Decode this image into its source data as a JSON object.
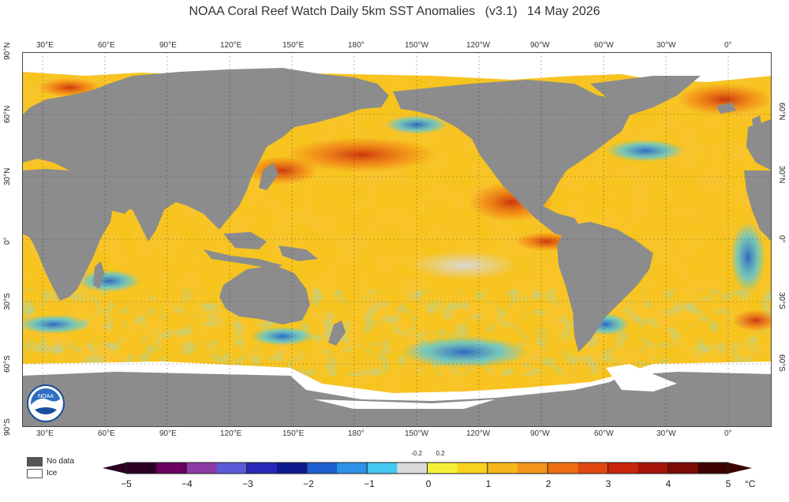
{
  "title": {
    "main": "NOAA Coral Reef Watch Daily 5km SST Anomalies",
    "version": "(v3.1)",
    "date": "14 May 2026"
  },
  "lon_labels": [
    "30°E",
    "60°E",
    "90°E",
    "120°E",
    "150°E",
    "180°",
    "150°W",
    "120°W",
    "90°W",
    "60°W",
    "30°W",
    "0°"
  ],
  "lat_labels_left": [
    "90°N",
    "60°N",
    "30°N",
    "0°",
    "30°S",
    "60°S",
    "90°S"
  ],
  "lat_labels_right": [
    "60°N",
    "30°N",
    "0°",
    "30°S",
    "60°S"
  ],
  "legend": {
    "no_data": "No data",
    "ice": "Ice",
    "no_data_color": "#555555",
    "ice_color": "#ffffff"
  },
  "colorbar": {
    "ticks": [
      "−5",
      "−4",
      "−3",
      "−2",
      "−1",
      "0",
      "1",
      "2",
      "3",
      "4",
      "5"
    ],
    "small_ticks": [
      "-0.2",
      "0.2"
    ],
    "unit": "°C",
    "colors": [
      "#2b0024",
      "#6a0060",
      "#8c3ba6",
      "#5b5bd6",
      "#2727b8",
      "#0d1a8f",
      "#1d5fd1",
      "#2c93e8",
      "#45c8f2",
      "#d9d9d9",
      "#f5ef3a",
      "#f7d21c",
      "#f6b51a",
      "#f39418",
      "#ee6f12",
      "#e34812",
      "#c8260c",
      "#a51208",
      "#7c0a05",
      "#3d0200"
    ]
  },
  "map": {
    "land_color": "#8c8c8c",
    "ice_color": "#ffffff",
    "ocean_base_color": "#f7c41e"
  },
  "logo_text": "NOAA"
}
